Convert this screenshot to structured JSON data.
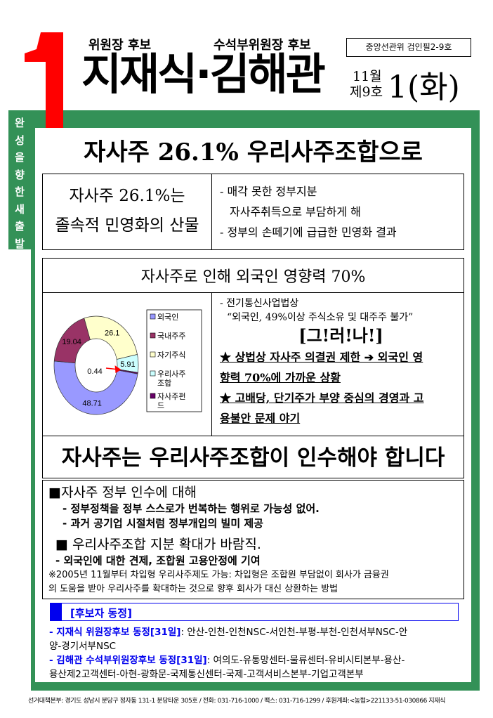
{
  "header": {
    "number_mark": "1",
    "role1": "위원장 후보",
    "role2": "수석부위원장 후보",
    "candidates": "지재식·김해관",
    "approval": "중앙선관위 검인필2-9호",
    "month": "11월",
    "issue": "제9호",
    "day": "1",
    "weekday": "(화)"
  },
  "sidebar_slogan": [
    "완",
    "성",
    "을",
    "향",
    "한",
    "새",
    "출",
    "발"
  ],
  "main_title": "자사주 26.1% 우리사주조합으로",
  "section1": {
    "left_line1": "자사주 26.1%는",
    "left_line2": "졸속적 민영화의 산물",
    "right_line1": "- 매각 못한 정부지분",
    "right_line2": "자사주취득으로 부담하게 해",
    "right_line3": "- 정부의 손떼기에 급급한 민영화 결과"
  },
  "section2": {
    "title": "자사주로 인해 외국인 영향력 70%",
    "law_line1": "- 전기통신사업법상",
    "law_line2": "“외국인, 49%이상 주식소유 및 대주주 불가”",
    "however": "[그!러!나!]",
    "star1_line1": "★ 상법상 자사주 의결권 제한 ➔ 외국인 영",
    "star1_line2": "향력 70%에 가까운 상황",
    "star2_line1": "★ 고배당, 단기주가 부양 중심의 경영과 고",
    "star2_line2": "용불안 문제 야기"
  },
  "chart_data": {
    "type": "pie",
    "variant": "donut",
    "categories": [
      "외국인",
      "국내주주",
      "자기주식",
      "우리사주조합",
      "자사주펀드"
    ],
    "values": [
      48.71,
      19.04,
      26.1,
      5.91,
      0.44
    ],
    "labels": [
      "48.71",
      "19.04",
      "26.1",
      "5.91",
      "0.44"
    ],
    "legend_labels": [
      [
        "외국인"
      ],
      [
        "국내주주"
      ],
      [
        "자기주식"
      ],
      [
        "우리사주",
        "조합"
      ],
      [
        "자사주펀",
        "드"
      ]
    ],
    "colors": [
      "#9999ff",
      "#993366",
      "#ffffcc",
      "#ccffff",
      "#660066"
    ],
    "legend": "right"
  },
  "slogan": "자사주는 우리사주조합이 인수해야 합니다",
  "section3": {
    "heading1": "■자사주 정부 인수에 대해",
    "bullet1": "- 정부정책을 정부 스스로가 번복하는 행위로 가능성 없어.",
    "bullet2": "- 과거 공기업 시절처럼 정부개입의 빌미 제공",
    "heading2": "■ 우리사주조합 지분 확대가 바람직.",
    "bullet3": "- 외국인에 대한 견제, 조합원 고용안정에 기여",
    "note_line1": "※2005년 11월부터 차입형 우리사주제도 가능: 차입형은 조합원 부담없이 회사가 금융권",
    "note_line2": "의 도움을 받아 우리사주를 확대하는 것으로 향후 회사가 대신 상환하는 방법"
  },
  "activity": {
    "heading": "[후보자 동정]",
    "item1_label": "- 지재식 위원장후보 동정[31일]",
    "item1_text": ": 안산-인천-인천NSC-서인천-부평-부천-인천서부NSC-안",
    "item1_text2": "양-경기서부NSC",
    "item2_label": "- 김해관 수석부위원장후보 동정[31일]",
    "item2_text": ": 여의도-유통망센터-물류센터-유비시티본부-용산-",
    "item2_text2": "용산제2고객센터-아현-광화문-국제통신센터-국제-고객서비스본부-기업고객본부"
  },
  "footer": "선거대책본부: 경기도 성남시 분당구 정자동 131-1 분당타운 305호 / 전화: 031-716-1000 / 팩스: 031-716-1299 / 후원계좌:<농협>221133-51-030866 지재식",
  "colors": {
    "frame_green": "#339157",
    "mark_red": "#ff0000",
    "accent_blue": "#0000ee"
  }
}
